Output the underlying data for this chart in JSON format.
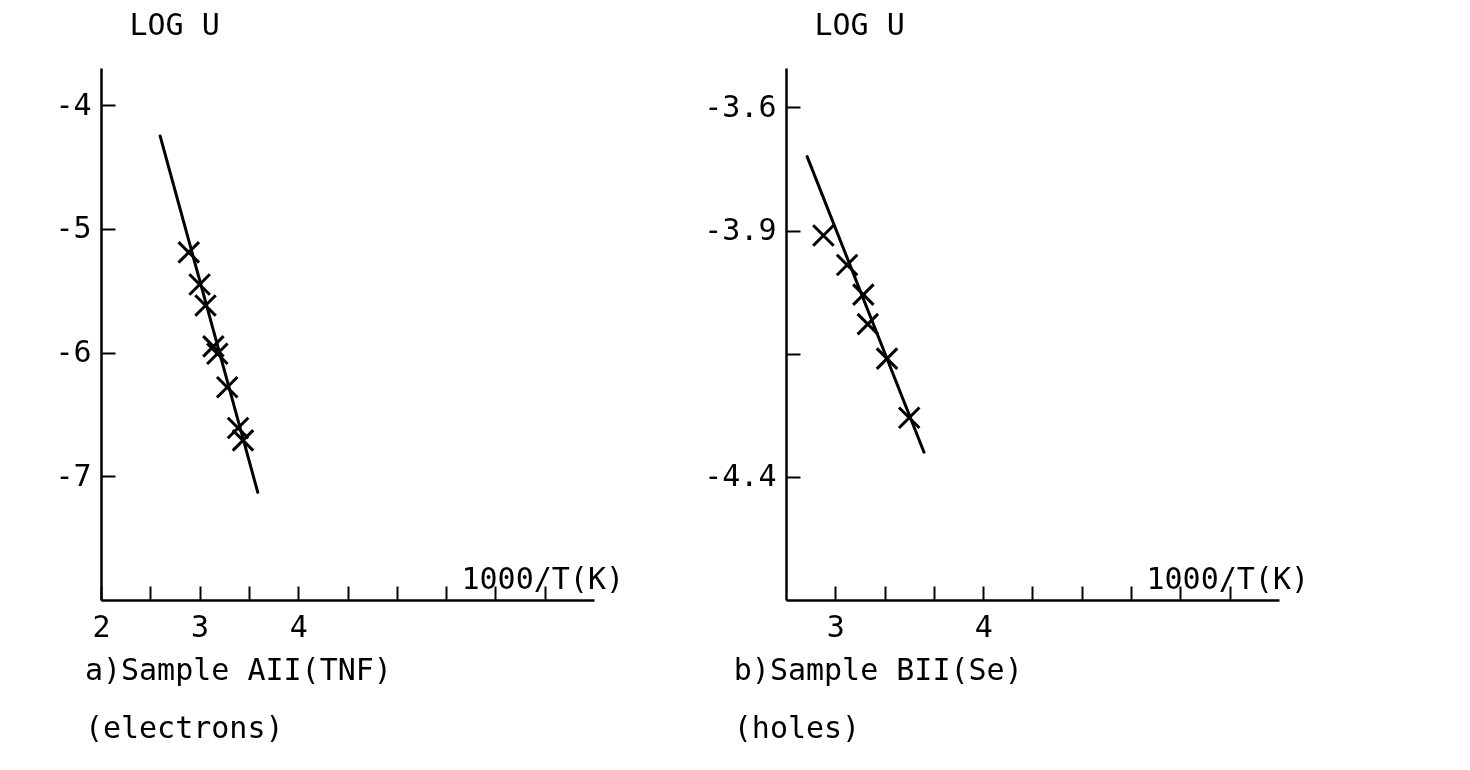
{
  "chart_data": [
    {
      "type": "scatter",
      "title": "a)Sample AII(TNF)",
      "subtitle": "(electrons)",
      "xlabel": "1000/T(K)",
      "ylabel": "LOG U",
      "xlim": [
        2,
        7
      ],
      "ylim": [
        -8,
        -3.7
      ],
      "xticks": [
        2,
        {
          "value": 2.5,
          "label": null
        },
        3,
        {
          "value": 3.5,
          "label": null
        },
        4,
        {
          "value": 4.5,
          "label": null
        },
        {
          "value": 5,
          "label": null
        },
        {
          "value": 5.5,
          "label": null
        },
        {
          "value": 6,
          "label": null
        },
        {
          "value": 6.5,
          "label": null
        }
      ],
      "yticks": [
        -7,
        -6,
        -5,
        -4
      ],
      "marker": "cross",
      "series": [
        {
          "color": "#000000",
          "x": [
            2.89,
            3.0,
            3.06,
            3.14,
            3.18,
            3.28,
            3.39,
            3.44
          ],
          "values": [
            -5.19,
            -5.45,
            -5.62,
            -5.95,
            -6.01,
            -6.28,
            -6.61,
            -6.71
          ]
        },
        {
          "type": "line",
          "color": "#000000",
          "marker": "none",
          "x": [
            2.6,
            3.59
          ],
          "values": [
            -4.25,
            -7.13
          ]
        }
      ]
    },
    {
      "type": "scatter",
      "title": "b)Sample BII(Se)",
      "subtitle": "(holes)",
      "xlabel": "1000/T(K)",
      "ylabel": "LOG U",
      "xlim": [
        2.667,
        6
      ],
      "ylim": [
        -4.65,
        -3.57
      ],
      "xticks": [
        3,
        {
          "value": 3.333,
          "label": null
        },
        {
          "value": 3.667,
          "label": null
        },
        4,
        {
          "value": 4.333,
          "label": null
        },
        {
          "value": 4.667,
          "label": null
        },
        {
          "value": 5,
          "label": null
        },
        {
          "value": 5.333,
          "label": null
        },
        {
          "value": 5.667,
          "label": null
        }
      ],
      "yticks": [
        -4.4,
        {
          "value": -4.15,
          "label": null
        },
        -3.9,
        {
          "value": -3.65,
          "label": "-3.6"
        }
      ],
      "marker": "cross",
      "series": [
        {
          "color": "#000000",
          "x": [
            2.92,
            3.08,
            3.19,
            3.22,
            3.35,
            3.5
          ],
          "values": [
            -3.91,
            -3.97,
            -4.03,
            -4.09,
            -4.16,
            -4.28
          ]
        },
        {
          "type": "line",
          "color": "#000000",
          "marker": "none",
          "x": [
            2.81,
            3.6
          ],
          "values": [
            -3.75,
            -4.35
          ]
        }
      ]
    }
  ]
}
